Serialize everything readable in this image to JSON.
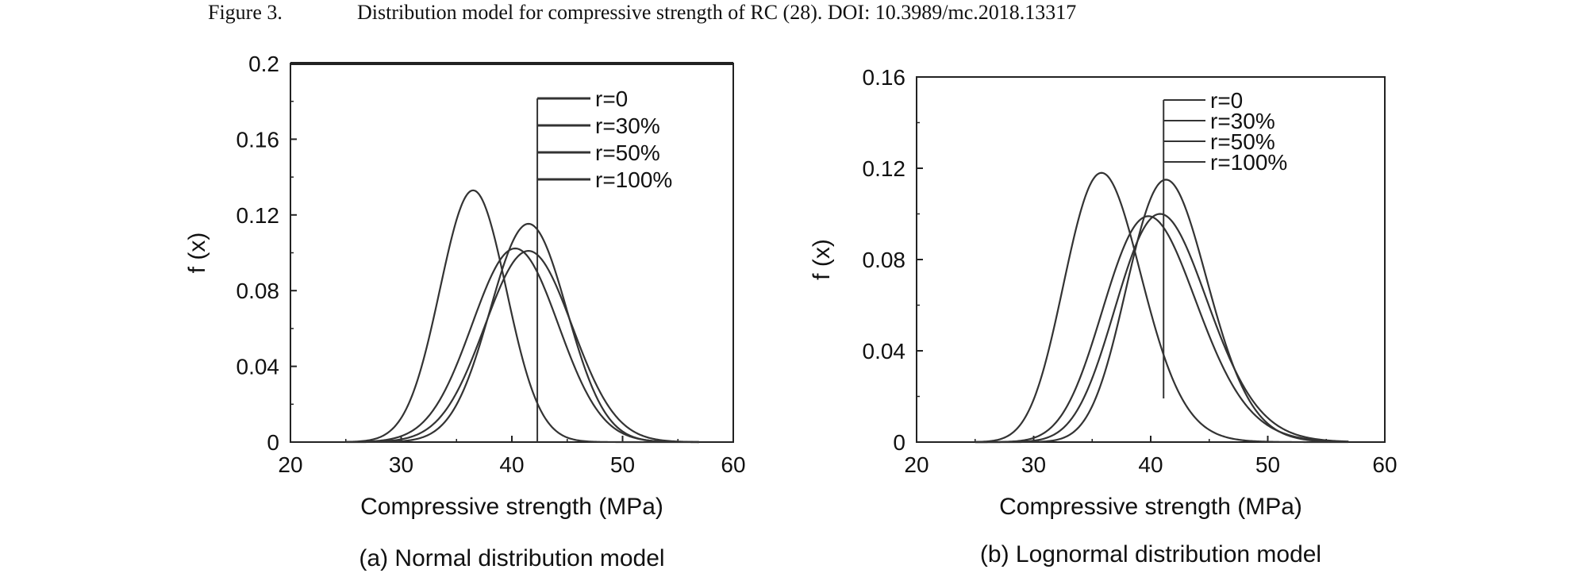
{
  "figure": {
    "label": "Figure 3.",
    "caption": "Distribution model for compressive strength of RC (28). DOI: 10.3989/mc.2018.13317"
  },
  "chart_data": [
    {
      "type": "line",
      "subtitle": "(a) Normal distribution model",
      "xlabel": "Compressive strength (MPa)",
      "ylabel": "f (x)",
      "xlim": [
        20,
        60
      ],
      "ylim": [
        0,
        0.2
      ],
      "xticks": [
        "20",
        "30",
        "40",
        "50",
        "60"
      ],
      "yticks": [
        "0",
        "0.04",
        "0.08",
        "0.12",
        "0.16",
        "0.2"
      ],
      "grid": false,
      "legend_position": "top-right",
      "series": [
        {
          "name": "r=0",
          "mu": 36.5,
          "sigma": 3.0
        },
        {
          "name": "r=30%",
          "mu": 41.5,
          "sigma": 3.46
        },
        {
          "name": "r=50%",
          "mu": 41.5,
          "sigma": 3.95
        },
        {
          "name": "r=100%",
          "mu": 40.3,
          "sigma": 3.9
        }
      ],
      "reference_line_x": 42.3
    },
    {
      "type": "line",
      "subtitle": "(b) Lognormal distribution model",
      "xlabel": "Compressive strength (MPa)",
      "ylabel": "f (x)",
      "xlim": [
        20,
        60
      ],
      "ylim": [
        0,
        0.16
      ],
      "xticks": [
        "20",
        "30",
        "40",
        "50",
        "60"
      ],
      "yticks": [
        "0",
        "0.04",
        "0.08",
        "0.12",
        "0.16"
      ],
      "grid": false,
      "legend_position": "top-right",
      "series": [
        {
          "name": "r=0",
          "mode": 35.8,
          "peak": 0.118,
          "sigma": 0.092
        },
        {
          "name": "r=30%",
          "mode": 41.3,
          "peak": 0.115,
          "sigma": 0.083
        },
        {
          "name": "r=50%",
          "mode": 40.8,
          "peak": 0.1,
          "sigma": 0.096
        },
        {
          "name": "r=100%",
          "mode": 39.8,
          "peak": 0.099,
          "sigma": 0.1
        }
      ],
      "reference_line_x": 41.1
    }
  ]
}
